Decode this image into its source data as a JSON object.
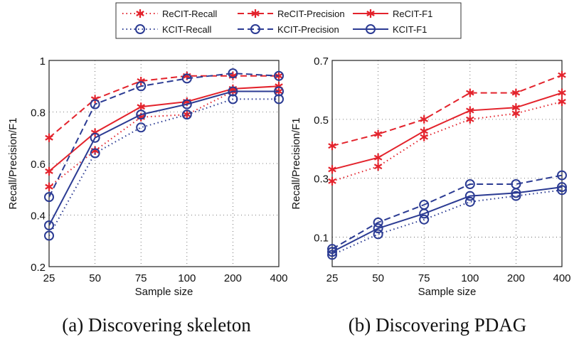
{
  "colors": {
    "ReCIT": "#e3232c",
    "KCIT": "#2b3b93"
  },
  "legend": [
    {
      "name": "ReCIT-Recall",
      "family": "ReCIT",
      "style": "dotted",
      "marker": "asterisk"
    },
    {
      "name": "ReCIT-Precision",
      "family": "ReCIT",
      "style": "dashed",
      "marker": "asterisk"
    },
    {
      "name": "ReCIT-F1",
      "family": "ReCIT",
      "style": "solid",
      "marker": "asterisk"
    },
    {
      "name": "KCIT-Recall",
      "family": "KCIT",
      "style": "dotted",
      "marker": "circle"
    },
    {
      "name": "KCIT-Precision",
      "family": "KCIT",
      "style": "dashed",
      "marker": "circle"
    },
    {
      "name": "KCIT-F1",
      "family": "KCIT",
      "style": "solid",
      "marker": "circle"
    }
  ],
  "chart_data": [
    {
      "type": "line",
      "caption": "(a) Discovering skeleton",
      "xlabel": "Sample size",
      "ylabel": "Recall/Precision/F1",
      "categories": [
        "25",
        "50",
        "75",
        "100",
        "200",
        "400"
      ],
      "ylim": [
        0.2,
        1
      ],
      "yticks": [
        "0.2",
        "0.4",
        "0.6",
        "0.8",
        "1"
      ],
      "ytick_values": [
        0.2,
        0.4,
        0.6,
        0.8,
        1.0
      ],
      "grid": true,
      "series": [
        {
          "name": "ReCIT-Recall",
          "values": [
            0.51,
            0.65,
            0.78,
            0.79,
            0.88,
            0.88
          ]
        },
        {
          "name": "ReCIT-Precision",
          "values": [
            0.7,
            0.85,
            0.92,
            0.94,
            0.94,
            0.94
          ]
        },
        {
          "name": "ReCIT-F1",
          "values": [
            0.57,
            0.72,
            0.82,
            0.84,
            0.89,
            0.9
          ]
        },
        {
          "name": "KCIT-Recall",
          "values": [
            0.32,
            0.64,
            0.74,
            0.79,
            0.85,
            0.85
          ]
        },
        {
          "name": "KCIT-Precision",
          "values": [
            0.47,
            0.83,
            0.9,
            0.93,
            0.95,
            0.94
          ]
        },
        {
          "name": "KCIT-F1",
          "values": [
            0.36,
            0.7,
            0.79,
            0.83,
            0.88,
            0.88
          ]
        }
      ]
    },
    {
      "type": "line",
      "caption": "(b) Discovering PDAG",
      "xlabel": "Sample size",
      "ylabel": "Recall/Precision/F1",
      "categories": [
        "25",
        "50",
        "75",
        "100",
        "200",
        "400"
      ],
      "ylim": [
        0,
        0.7
      ],
      "yticks": [
        "0.1",
        "0.3",
        "0.5",
        "0.7"
      ],
      "ytick_values": [
        0.1,
        0.3,
        0.5,
        0.7
      ],
      "grid": true,
      "series": [
        {
          "name": "ReCIT-Recall",
          "values": [
            0.29,
            0.34,
            0.44,
            0.5,
            0.52,
            0.56
          ]
        },
        {
          "name": "ReCIT-Precision",
          "values": [
            0.41,
            0.45,
            0.5,
            0.59,
            0.59,
            0.65
          ]
        },
        {
          "name": "ReCIT-F1",
          "values": [
            0.33,
            0.37,
            0.46,
            0.53,
            0.54,
            0.59
          ]
        },
        {
          "name": "KCIT-Recall",
          "values": [
            0.04,
            0.11,
            0.16,
            0.22,
            0.24,
            0.26
          ]
        },
        {
          "name": "KCIT-Precision",
          "values": [
            0.06,
            0.15,
            0.21,
            0.28,
            0.28,
            0.31
          ]
        },
        {
          "name": "KCIT-F1",
          "values": [
            0.05,
            0.13,
            0.18,
            0.24,
            0.25,
            0.27
          ]
        }
      ]
    }
  ]
}
